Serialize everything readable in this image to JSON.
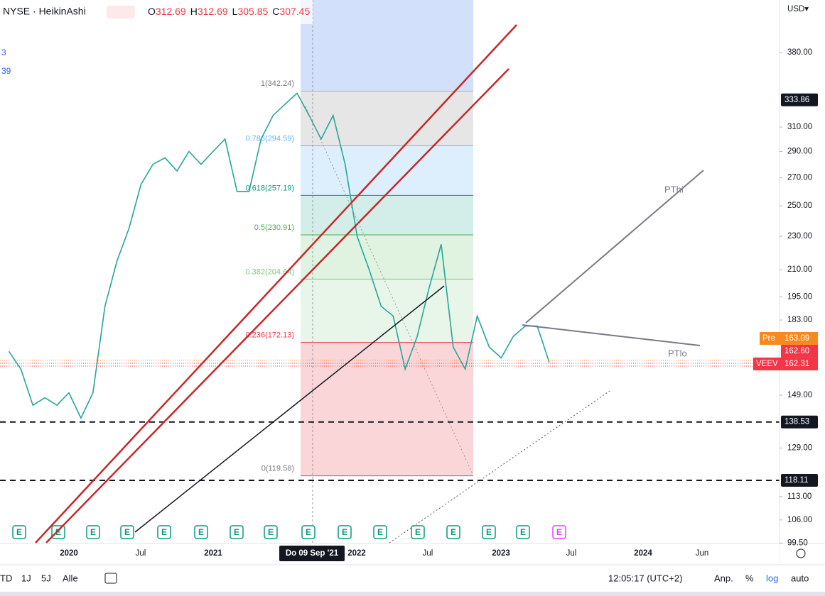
{
  "header": {
    "symbol": "NYSE · HeikinAshi",
    "ohlc": [
      {
        "label": "O",
        "value": "312.69"
      },
      {
        "label": "H",
        "value": "312.69"
      },
      {
        "label": "L",
        "value": "305.85"
      },
      {
        "label": "C",
        "value": "307.45"
      }
    ],
    "legend_fragments": [
      "3",
      "39"
    ]
  },
  "price_axis": {
    "currency": "USD▾",
    "ticks": [
      {
        "value": 380,
        "label": "380.00"
      },
      {
        "value": 310,
        "label": "310.00"
      },
      {
        "value": 290,
        "label": "290.00"
      },
      {
        "value": 270,
        "label": "270.00"
      },
      {
        "value": 250,
        "label": "250.00"
      },
      {
        "value": 230,
        "label": "230.00"
      },
      {
        "value": 210,
        "label": "210.00"
      },
      {
        "value": 195,
        "label": "195.00"
      },
      {
        "value": 183,
        "label": "183.00"
      },
      {
        "value": 149,
        "label": "149.00"
      },
      {
        "value": 129,
        "label": "129.00"
      },
      {
        "value": 113,
        "label": "113.00"
      },
      {
        "value": 106,
        "label": "106.00"
      },
      {
        "value": 99.5,
        "label": "99.50"
      }
    ],
    "tags": [
      {
        "value": 333.86,
        "label": "333.86",
        "color": "#131722"
      },
      {
        "value": 138.53,
        "label": "138.53",
        "color": "#131722"
      },
      {
        "value": 118.11,
        "label": "118.11",
        "color": "#131722"
      }
    ],
    "last_tags": [
      {
        "name": "Pre",
        "value": 163.09,
        "label": "163.09",
        "color": "#f68a1e"
      },
      {
        "value": 162.6,
        "label": "162.60",
        "color": "#f23645"
      },
      {
        "name": "VEEV",
        "value": 162.31,
        "label": "162.31",
        "color": "#f23645"
      }
    ]
  },
  "fibonacci": [
    {
      "label": "1(342.24)",
      "value": 342.24,
      "color": "#787b86",
      "fill": "#e6e6e6"
    },
    {
      "label": "0.786(294.59)",
      "value": 294.59,
      "color": "#64b5f6",
      "fill": "#ddeefc"
    },
    {
      "label": "0.618(257.19)",
      "value": 257.19,
      "color": "#089981",
      "fill": "#d3ede9"
    },
    {
      "label": "0.5(230.91)",
      "value": 230.91,
      "color": "#4caf50",
      "fill": "#e0f2e0"
    },
    {
      "label": "0.382(204.64)",
      "value": 204.64,
      "color": "#81c784",
      "fill": "#e8f5e9"
    },
    {
      "label": "0.236(172.13)",
      "value": 172.13,
      "color": "#f23645",
      "fill": "#fbd6d8"
    },
    {
      "label": "0(119.58)",
      "value": 119.58,
      "color": "#787b86",
      "fill": null
    }
  ],
  "time_axis": {
    "labels": [
      "2020",
      "Jul",
      "2021",
      "2022",
      "Jul",
      "2023",
      "Jul",
      "2024",
      "Jun"
    ],
    "crosshair_label": "Do 09 Sep '21"
  },
  "drawings": {
    "upper": "PThi",
    "lower": "PTlo"
  },
  "earnings_label": "E",
  "price_series": {
    "x": [
      "2019-08",
      "2019-09",
      "2019-10",
      "2019-11",
      "2019-12",
      "2020-01",
      "2020-02",
      "2020-03",
      "2020-04",
      "2020-05",
      "2020-06",
      "2020-07",
      "2020-08",
      "2020-09",
      "2020-10",
      "2020-11",
      "2020-12",
      "2021-01",
      "2021-02",
      "2021-03",
      "2021-04",
      "2021-05",
      "2021-06",
      "2021-07",
      "2021-08",
      "2021-09",
      "2021-10",
      "2021-11",
      "2021-12",
      "2022-01",
      "2022-02",
      "2022-03",
      "2022-04",
      "2022-05",
      "2022-06",
      "2022-07",
      "2022-08",
      "2022-09",
      "2022-10",
      "2022-11",
      "2022-12",
      "2023-01",
      "2023-02",
      "2023-03",
      "2023-04",
      "2023-05"
    ],
    "close": [
      168,
      160,
      145,
      148,
      145,
      150,
      140,
      150,
      190,
      215,
      235,
      265,
      280,
      285,
      275,
      290,
      280,
      290,
      300,
      260,
      260,
      300,
      320,
      330,
      340,
      320,
      300,
      320,
      280,
      230,
      210,
      190,
      185,
      160,
      175,
      200,
      225,
      170,
      160,
      185,
      170,
      165,
      175,
      180,
      180,
      163
    ]
  },
  "toolbar": {
    "ranges": [
      "TD",
      "1J",
      "5J",
      "Alle"
    ],
    "clock": "12:05:17 (UTC+2)",
    "options": [
      "Anp.",
      "%",
      "log",
      "auto"
    ]
  }
}
